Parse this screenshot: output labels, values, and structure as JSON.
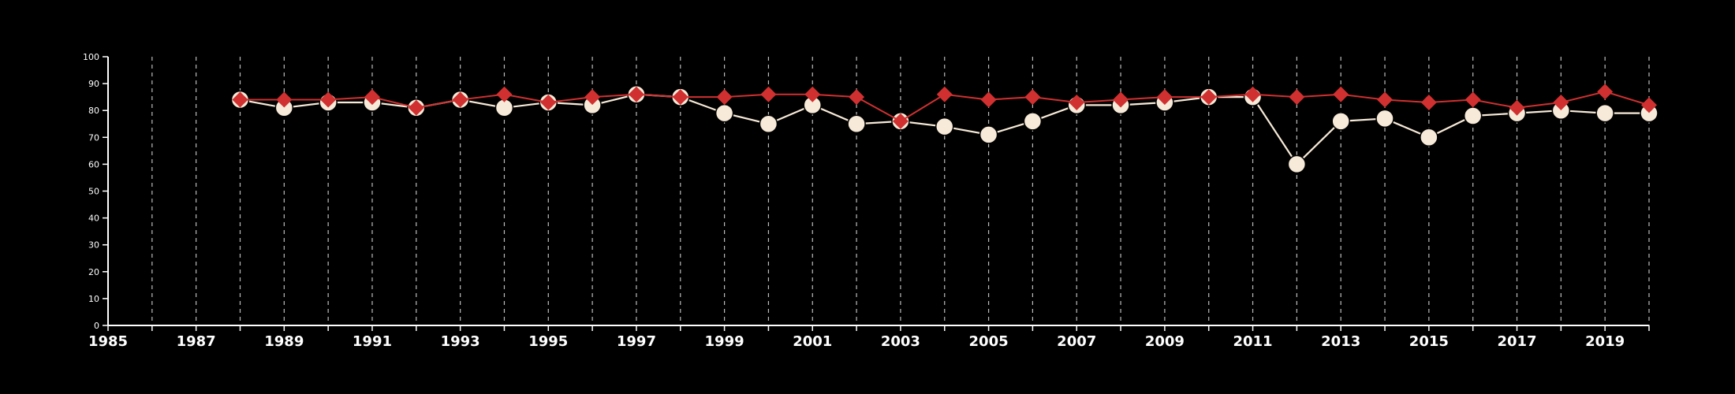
{
  "chart_data": {
    "type": "line",
    "title": "",
    "xlabel": "",
    "ylabel": "",
    "xlim": [
      1985,
      2020
    ],
    "ylim": [
      0,
      100
    ],
    "x_ticks": [
      1985,
      1987,
      1989,
      1991,
      1993,
      1995,
      1997,
      1999,
      2001,
      2003,
      2005,
      2007,
      2009,
      2011,
      2013,
      2015,
      2017,
      2019
    ],
    "y_ticks": [
      0,
      10,
      20,
      30,
      40,
      50,
      60,
      70,
      80,
      90,
      100
    ],
    "grid": "vertical dashed lines at each year",
    "legend": "none",
    "x": [
      1988,
      1989,
      1990,
      1991,
      1992,
      1993,
      1994,
      1995,
      1996,
      1997,
      1998,
      1999,
      2000,
      2001,
      2002,
      2003,
      2004,
      2005,
      2006,
      2007,
      2008,
      2009,
      2010,
      2011,
      2012,
      2013,
      2014,
      2015,
      2016,
      2017,
      2018,
      2019,
      2020
    ],
    "series": [
      {
        "marker": "diamond",
        "color": "#d03030",
        "values": [
          84,
          84,
          84,
          85,
          81,
          84,
          86,
          83,
          85,
          86,
          85,
          85,
          86,
          86,
          85,
          76,
          86,
          84,
          85,
          83,
          84,
          85,
          85,
          86,
          85,
          86,
          84,
          83,
          84,
          81,
          83,
          87,
          82
        ]
      },
      {
        "marker": "circle",
        "color": "#f7ead8",
        "values": [
          84,
          81,
          83,
          83,
          81,
          84,
          81,
          83,
          82,
          86,
          85,
          79,
          75,
          82,
          75,
          76,
          74,
          71,
          76,
          82,
          82,
          83,
          85,
          85,
          60,
          76,
          77,
          70,
          78,
          79,
          80,
          79,
          79
        ]
      }
    ]
  }
}
